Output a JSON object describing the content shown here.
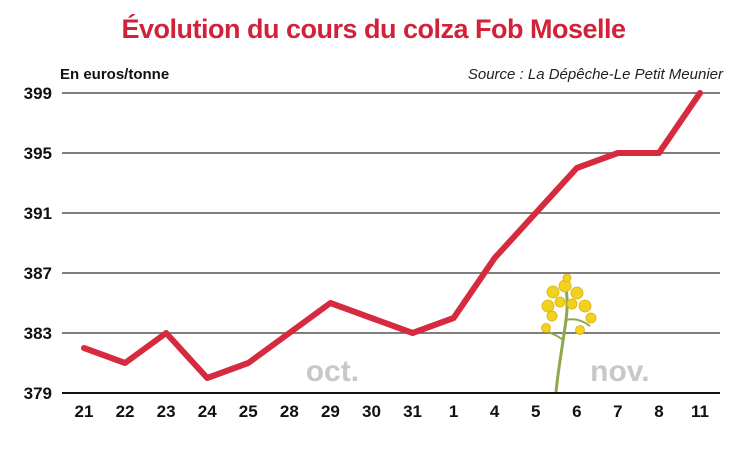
{
  "chart_data": {
    "type": "line",
    "title": "Évolution du cours du colza Fob Moselle",
    "ylabel": "En euros/tonne",
    "source": "Source : La Dépêche-Le Petit Meunier",
    "categories": [
      "21",
      "22",
      "23",
      "24",
      "25",
      "28",
      "29",
      "30",
      "31",
      "1",
      "4",
      "5",
      "6",
      "7",
      "8",
      "11"
    ],
    "values": [
      382,
      381,
      383,
      380,
      381,
      383,
      385,
      384,
      383,
      384,
      388,
      391,
      394,
      395,
      395,
      399
    ],
    "ylim": [
      379,
      399
    ],
    "yticks": [
      "379",
      "383",
      "387",
      "391",
      "395",
      "399"
    ],
    "grid": true,
    "annotations": [
      {
        "text": "oct.",
        "category_index": 6
      },
      {
        "text": "nov.",
        "category_index": 13
      }
    ],
    "colors": {
      "line": "#d62a3e",
      "grid": "#555555",
      "title": "#d1223a",
      "month": "#c8c8c8"
    }
  }
}
